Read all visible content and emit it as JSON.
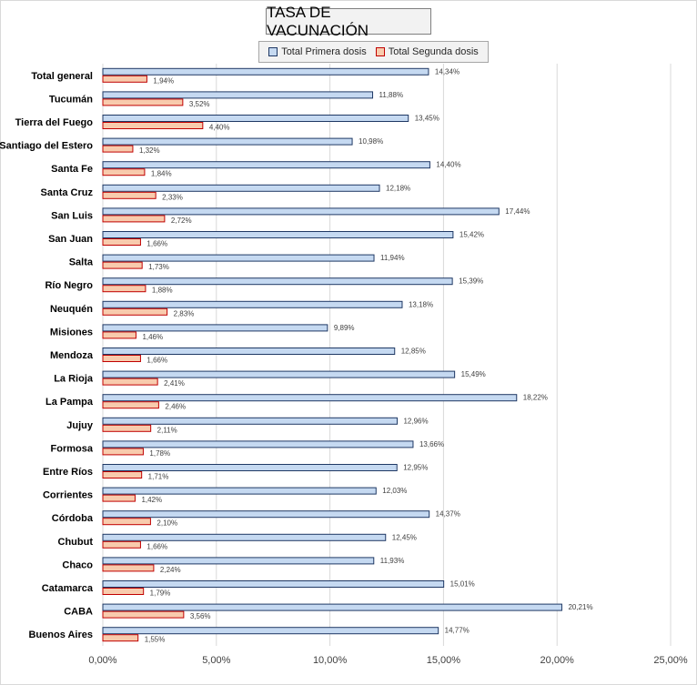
{
  "chart_data": {
    "type": "bar",
    "orientation": "horizontal",
    "title": "TASA DE VACUNACIÓN",
    "categories": [
      "Total general",
      "Tucumán",
      "Tierra del Fuego",
      "Santiago del Estero",
      "Santa Fe",
      "Santa Cruz",
      "San Luis",
      "San Juan",
      "Salta",
      "Río Negro",
      "Neuquén",
      "Misiones",
      "Mendoza",
      "La Rioja",
      "La Pampa",
      "Jujuy",
      "Formosa",
      "Entre Ríos",
      "Corrientes",
      "Córdoba",
      "Chubut",
      "Chaco",
      "Catamarca",
      "CABA",
      "Buenos Aires"
    ],
    "series": [
      {
        "name": "Total Primera dosis",
        "color": "#c5d9f1",
        "stroke": "#1f3864",
        "values": [
          14.34,
          11.88,
          13.45,
          10.98,
          14.4,
          12.18,
          17.44,
          15.42,
          11.94,
          15.39,
          13.18,
          9.89,
          12.85,
          15.49,
          18.22,
          12.96,
          13.66,
          12.95,
          12.03,
          14.37,
          12.45,
          11.93,
          15.01,
          20.21,
          14.77
        ],
        "labels": [
          "14,34%",
          "11,88%",
          "13,45%",
          "10,98%",
          "14,40%",
          "12,18%",
          "17,44%",
          "15,42%",
          "11,94%",
          "15,39%",
          "13,18%",
          "9,89%",
          "12,85%",
          "15,49%",
          "18,22%",
          "12,96%",
          "13,66%",
          "12,95%",
          "12,03%",
          "14,37%",
          "12,45%",
          "11,93%",
          "15,01%",
          "20,21%",
          "14,77%"
        ]
      },
      {
        "name": "Total Segunda dosis",
        "color": "#f8cbad",
        "stroke": "#c00000",
        "values": [
          1.94,
          3.52,
          4.4,
          1.32,
          1.84,
          2.33,
          2.72,
          1.66,
          1.73,
          1.88,
          2.83,
          1.46,
          1.66,
          2.41,
          2.46,
          2.11,
          1.78,
          1.71,
          1.42,
          2.1,
          1.66,
          2.24,
          1.79,
          3.56,
          1.55
        ],
        "labels": [
          "1,94%",
          "3,52%",
          "4,40%",
          "1,32%",
          "1,84%",
          "2,33%",
          "2,72%",
          "1,66%",
          "1,73%",
          "1,88%",
          "2,83%",
          "1,46%",
          "1,66%",
          "2,41%",
          "2,46%",
          "2,11%",
          "1,78%",
          "1,71%",
          "1,42%",
          "2,10%",
          "1,66%",
          "2,24%",
          "1,79%",
          "3,56%",
          "1,55%"
        ]
      }
    ],
    "xlim": [
      0,
      25
    ],
    "xticks": [
      0,
      5,
      10,
      15,
      20,
      25
    ],
    "xtick_labels": [
      "0,00%",
      "5,00%",
      "10,00%",
      "15,00%",
      "20,00%",
      "25,00%"
    ],
    "grid": true,
    "legend_position": "top"
  }
}
